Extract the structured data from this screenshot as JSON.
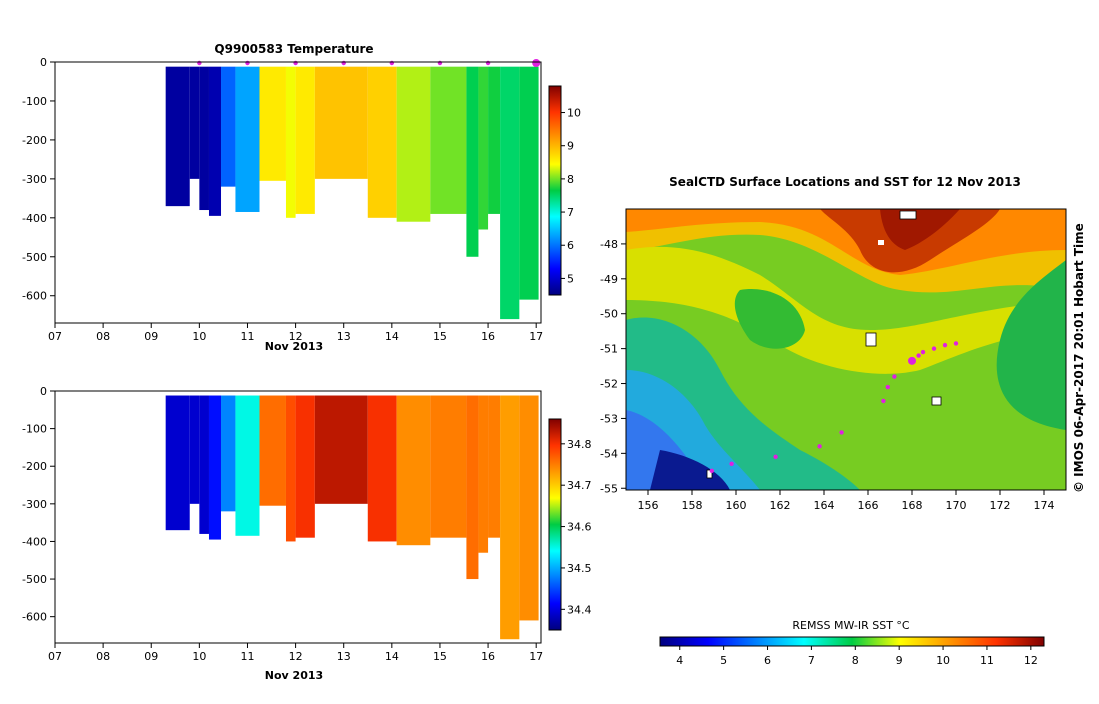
{
  "chart_data": [
    {
      "type": "heatmap",
      "title": "Q9900583  Temperature",
      "xlabel": "Nov 2013",
      "x_ticks": [
        "07",
        "08",
        "09",
        "10",
        "11",
        "12",
        "13",
        "14",
        "15",
        "16",
        "17"
      ],
      "xlim": [
        7,
        17.1
      ],
      "y_ticks": [
        0,
        -100,
        -200,
        -300,
        -400,
        -500,
        -600
      ],
      "ylim": [
        -670,
        0
      ],
      "colorbar": {
        "ticks": [
          5,
          6,
          7,
          8,
          9,
          10
        ],
        "range": [
          4.5,
          10.8
        ]
      },
      "profile_markers_day": [
        10,
        11,
        12,
        13,
        14,
        15,
        16,
        17
      ],
      "profiles": [
        {
          "start": 9.3,
          "end": 9.8,
          "bottom": -370,
          "value": 4.7
        },
        {
          "start": 9.8,
          "end": 10.0,
          "bottom": -300,
          "value": 4.7
        },
        {
          "start": 10.0,
          "end": 10.2,
          "bottom": -380,
          "value": 4.7
        },
        {
          "start": 10.2,
          "end": 10.45,
          "bottom": -395,
          "value": 4.8
        },
        {
          "start": 10.45,
          "end": 10.75,
          "bottom": -320,
          "value": 5.9
        },
        {
          "start": 10.75,
          "end": 11.25,
          "bottom": -385,
          "value": 6.3
        },
        {
          "start": 11.25,
          "end": 11.8,
          "bottom": -305,
          "value": 8.6
        },
        {
          "start": 11.8,
          "end": 12.0,
          "bottom": -400,
          "value": 8.4
        },
        {
          "start": 12.0,
          "end": 12.4,
          "bottom": -390,
          "value": 8.6
        },
        {
          "start": 12.4,
          "end": 13.5,
          "bottom": -300,
          "value": 8.9
        },
        {
          "start": 13.5,
          "end": 14.1,
          "bottom": -400,
          "value": 8.8
        },
        {
          "start": 14.1,
          "end": 14.8,
          "bottom": -410,
          "value": 8.2
        },
        {
          "start": 14.8,
          "end": 15.55,
          "bottom": -390,
          "value": 8.0
        },
        {
          "start": 15.55,
          "end": 15.8,
          "bottom": -500,
          "value": 7.6
        },
        {
          "start": 15.8,
          "end": 16.0,
          "bottom": -430,
          "value": 7.8
        },
        {
          "start": 16.0,
          "end": 16.25,
          "bottom": -390,
          "value": 7.7
        },
        {
          "start": 16.25,
          "end": 16.65,
          "bottom": -660,
          "value": 7.5
        },
        {
          "start": 16.65,
          "end": 17.05,
          "bottom": -610,
          "value": 7.6
        }
      ]
    },
    {
      "type": "heatmap",
      "title": "",
      "xlabel": "Nov 2013",
      "x_ticks": [
        "07",
        "08",
        "09",
        "10",
        "11",
        "12",
        "13",
        "14",
        "15",
        "16",
        "17"
      ],
      "xlim": [
        7,
        17.1
      ],
      "y_ticks": [
        0,
        -100,
        -200,
        -300,
        -400,
        -500,
        -600
      ],
      "ylim": [
        -670,
        0
      ],
      "colorbar": {
        "ticks": [
          "34.4",
          "34.5",
          "34.6",
          "34.7",
          "34.8"
        ],
        "range": [
          34.35,
          34.86
        ]
      },
      "profiles": [
        {
          "start": 9.3,
          "end": 9.8,
          "bottom": -370,
          "value": 34.39
        },
        {
          "start": 9.8,
          "end": 10.0,
          "bottom": -300,
          "value": 34.39
        },
        {
          "start": 10.0,
          "end": 10.2,
          "bottom": -380,
          "value": 34.39
        },
        {
          "start": 10.2,
          "end": 10.45,
          "bottom": -395,
          "value": 34.42
        },
        {
          "start": 10.45,
          "end": 10.75,
          "bottom": -320,
          "value": 34.48
        },
        {
          "start": 10.75,
          "end": 11.25,
          "bottom": -385,
          "value": 34.55
        },
        {
          "start": 11.25,
          "end": 11.8,
          "bottom": -305,
          "value": 34.76
        },
        {
          "start": 11.8,
          "end": 12.0,
          "bottom": -400,
          "value": 34.78
        },
        {
          "start": 12.0,
          "end": 12.4,
          "bottom": -390,
          "value": 34.8
        },
        {
          "start": 12.4,
          "end": 13.5,
          "bottom": -300,
          "value": 34.83
        },
        {
          "start": 13.5,
          "end": 14.1,
          "bottom": -400,
          "value": 34.8
        },
        {
          "start": 14.1,
          "end": 14.8,
          "bottom": -410,
          "value": 34.74
        },
        {
          "start": 14.8,
          "end": 15.55,
          "bottom": -390,
          "value": 34.75
        },
        {
          "start": 15.55,
          "end": 15.8,
          "bottom": -500,
          "value": 34.76
        },
        {
          "start": 15.8,
          "end": 16.0,
          "bottom": -430,
          "value": 34.75
        },
        {
          "start": 16.0,
          "end": 16.25,
          "bottom": -390,
          "value": 34.75
        },
        {
          "start": 16.25,
          "end": 16.65,
          "bottom": -660,
          "value": 34.73
        },
        {
          "start": 16.65,
          "end": 17.05,
          "bottom": -610,
          "value": 34.74
        }
      ]
    },
    {
      "type": "heatmap",
      "title": "SealCTD Surface Locations and SST for 12 Nov 2013",
      "x_ticks": [
        "156",
        "158",
        "160",
        "162",
        "164",
        "166",
        "168",
        "170",
        "172",
        "174"
      ],
      "xlim": [
        155,
        175
      ],
      "y_ticks": [
        "-48",
        "-49",
        "-50",
        "-51",
        "-52",
        "-53",
        "-54",
        "-55"
      ],
      "ylim": [
        -55.05,
        -47.0
      ],
      "colorbar_label": "REMSS MW-IR SST °C",
      "colorbar": {
        "ticks": [
          "4",
          "5",
          "6",
          "7",
          "8",
          "9",
          "10",
          "11",
          "12"
        ],
        "range": [
          3.55,
          12.3
        ]
      },
      "track_points": [
        {
          "lon": 170.0,
          "lat": -50.85
        },
        {
          "lon": 169.5,
          "lat": -50.9
        },
        {
          "lon": 169.0,
          "lat": -51.0
        },
        {
          "lon": 168.5,
          "lat": -51.1
        },
        {
          "lon": 168.3,
          "lat": -51.2
        },
        {
          "lon": 167.2,
          "lat": -51.8
        },
        {
          "lon": 166.9,
          "lat": -52.1
        },
        {
          "lon": 166.7,
          "lat": -52.5
        },
        {
          "lon": 164.8,
          "lat": -53.4
        },
        {
          "lon": 163.8,
          "lat": -53.8
        },
        {
          "lon": 161.8,
          "lat": -54.1
        },
        {
          "lon": 159.8,
          "lat": -54.3
        },
        {
          "lon": 158.9,
          "lat": -54.5
        }
      ],
      "current_position": {
        "lon": 168.0,
        "lat": -51.35
      },
      "side_label": "© IMOS 06-Apr-2017 20:01 Hobart Time"
    }
  ]
}
